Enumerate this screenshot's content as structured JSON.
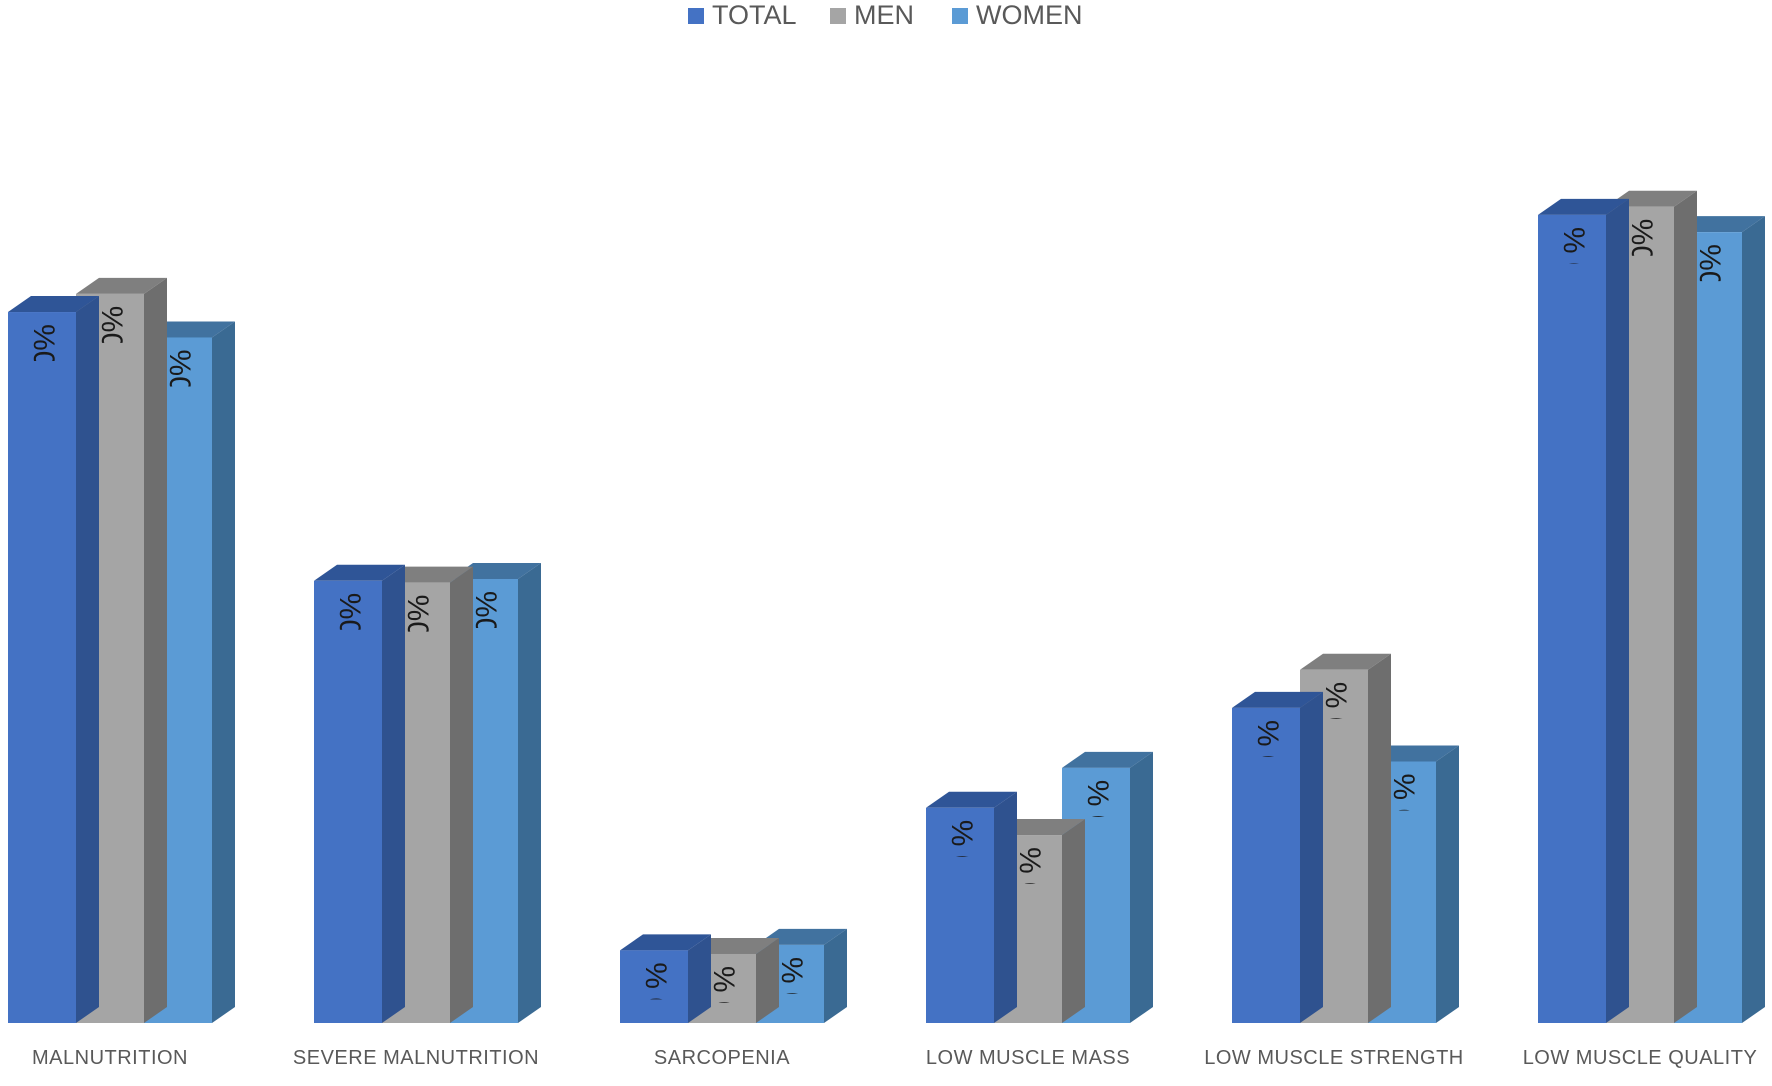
{
  "chart_data": {
    "type": "bar",
    "style": "3d-clustered-column",
    "title": "",
    "xlabel": "",
    "ylabel": "",
    "ylim": [
      0,
      100
    ],
    "grid": false,
    "legend": "top-center",
    "categories": [
      "MALNUTRITION",
      "SEVERE MALNUTRITION",
      "SARCOPENIA",
      "LOW MUSCLE MASS",
      "LOW MUSCLE STRENGTH",
      "LOW MUSCLE QUALITY"
    ],
    "series": [
      {
        "name": "TOTAL",
        "color": "#4472C4",
        "side_color": "#2F528F",
        "top_color": "#2F5597",
        "values": [
          78.3,
          48.7,
          8.0,
          23.7,
          34.7,
          89.0
        ],
        "labels": [
          "78.30%",
          "48.70%",
          "8.00 %",
          "23.70 %",
          "34.70 %",
          "89 %"
        ]
      },
      {
        "name": "MEN",
        "color": "#A5A5A5",
        "side_color": "#6E6E6E",
        "top_color": "#7F7F7F",
        "values": [
          80.3,
          48.5,
          7.6,
          20.7,
          38.9,
          89.9
        ],
        "labels": [
          "80.30%",
          "48.50%",
          "7.60 %",
          "20.70 %",
          "38.90 %",
          "89.90%"
        ]
      },
      {
        "name": "WOMEN",
        "color": "#5B9BD5",
        "side_color": "#3A6A93",
        "top_color": "#41729F",
        "values": [
          75.5,
          48.9,
          8.6,
          28.1,
          28.8,
          87.1
        ],
        "labels": [
          "75.50%",
          "48.90%",
          "8.60 %",
          "28.10 %",
          "28.80 %",
          "87.10%"
        ]
      }
    ]
  }
}
